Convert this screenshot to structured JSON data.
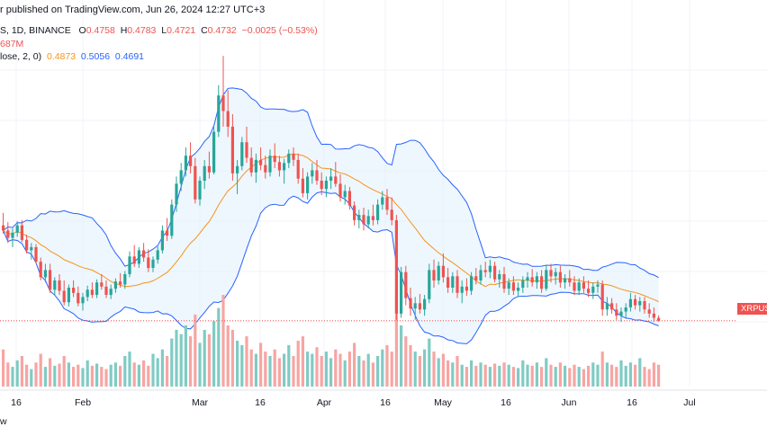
{
  "header": {
    "publish_text": "r published on TradingView.com, Jun 26, 2024 12:27 UTC+3",
    "symbol_text": "S, 1D, BINANCE",
    "ohlc": {
      "o_label": "O",
      "o_value": "0.4758",
      "h_label": "H",
      "h_value": "0.4783",
      "l_label": "L",
      "l_value": "0.4721",
      "c_label": "C",
      "c_value": "0.4732",
      "change": "−0.0025 (−0.53%)"
    },
    "volume_text": "687M",
    "bb_label": "lose, 2, 0)",
    "bb_basis": "0.4873",
    "bb_upper": "0.5056",
    "bb_lower": "0.4691"
  },
  "price_tag": "XRPUSDT",
  "footer_text": "w",
  "colors": {
    "up": "#26a69a",
    "down": "#ef5350",
    "basis": "#f7931a",
    "band": "#2962ff",
    "band_fill": "#e3f2fd",
    "volume_up": "#80cbc4",
    "volume_down": "#f7a5a3"
  },
  "chart_data": {
    "type": "candlestick",
    "x_tick_labels": [
      "16",
      "Feb",
      "Mar",
      "16",
      "Apr",
      "16",
      "May",
      "16",
      "Jun",
      "16",
      "Jul"
    ],
    "candles": [
      [
        0.565,
        0.577,
        0.557,
        0.56
      ],
      [
        0.56,
        0.568,
        0.548,
        0.553
      ],
      [
        0.553,
        0.562,
        0.544,
        0.558
      ],
      [
        0.558,
        0.569,
        0.554,
        0.565
      ],
      [
        0.565,
        0.57,
        0.549,
        0.551
      ],
      [
        0.551,
        0.556,
        0.538,
        0.541
      ],
      [
        0.541,
        0.548,
        0.532,
        0.544
      ],
      [
        0.544,
        0.547,
        0.528,
        0.53
      ],
      [
        0.53,
        0.534,
        0.512,
        0.515
      ],
      [
        0.515,
        0.528,
        0.51,
        0.522
      ],
      [
        0.522,
        0.528,
        0.5,
        0.503
      ],
      [
        0.503,
        0.515,
        0.498,
        0.512
      ],
      [
        0.512,
        0.518,
        0.498,
        0.502
      ],
      [
        0.502,
        0.512,
        0.488,
        0.491
      ],
      [
        0.491,
        0.508,
        0.487,
        0.505
      ],
      [
        0.505,
        0.512,
        0.496,
        0.5
      ],
      [
        0.5,
        0.506,
        0.487,
        0.49
      ],
      [
        0.49,
        0.5,
        0.483,
        0.496
      ],
      [
        0.496,
        0.507,
        0.492,
        0.503
      ],
      [
        0.503,
        0.51,
        0.495,
        0.498
      ],
      [
        0.498,
        0.513,
        0.495,
        0.51
      ],
      [
        0.51,
        0.518,
        0.503,
        0.506
      ],
      [
        0.506,
        0.512,
        0.495,
        0.498
      ],
      [
        0.498,
        0.508,
        0.494,
        0.504
      ],
      [
        0.504,
        0.514,
        0.5,
        0.511
      ],
      [
        0.511,
        0.519,
        0.505,
        0.508
      ],
      [
        0.508,
        0.521,
        0.504,
        0.518
      ],
      [
        0.518,
        0.54,
        0.515,
        0.535
      ],
      [
        0.535,
        0.546,
        0.525,
        0.528
      ],
      [
        0.528,
        0.544,
        0.524,
        0.541
      ],
      [
        0.541,
        0.548,
        0.53,
        0.534
      ],
      [
        0.534,
        0.542,
        0.52,
        0.524
      ],
      [
        0.524,
        0.535,
        0.52,
        0.532
      ],
      [
        0.532,
        0.545,
        0.528,
        0.541
      ],
      [
        0.541,
        0.565,
        0.538,
        0.56
      ],
      [
        0.56,
        0.572,
        0.55,
        0.555
      ],
      [
        0.555,
        0.59,
        0.552,
        0.585
      ],
      [
        0.585,
        0.612,
        0.578,
        0.605
      ],
      [
        0.605,
        0.625,
        0.598,
        0.618
      ],
      [
        0.618,
        0.64,
        0.612,
        0.632
      ],
      [
        0.632,
        0.645,
        0.615,
        0.622
      ],
      [
        0.622,
        0.63,
        0.586,
        0.59
      ],
      [
        0.59,
        0.612,
        0.584,
        0.608
      ],
      [
        0.608,
        0.628,
        0.6,
        0.622
      ],
      [
        0.622,
        0.636,
        0.61,
        0.616
      ],
      [
        0.616,
        0.66,
        0.614,
        0.655
      ],
      [
        0.655,
        0.7,
        0.65,
        0.69
      ],
      [
        0.69,
        0.728,
        0.66,
        0.675
      ],
      [
        0.675,
        0.695,
        0.65,
        0.66
      ],
      [
        0.66,
        0.672,
        0.608,
        0.615
      ],
      [
        0.615,
        0.628,
        0.595,
        0.622
      ],
      [
        0.622,
        0.65,
        0.618,
        0.645
      ],
      [
        0.645,
        0.66,
        0.625,
        0.63
      ],
      [
        0.63,
        0.64,
        0.612,
        0.616
      ],
      [
        0.616,
        0.634,
        0.606,
        0.628
      ],
      [
        0.628,
        0.64,
        0.618,
        0.623
      ],
      [
        0.623,
        0.632,
        0.61,
        0.616
      ],
      [
        0.616,
        0.638,
        0.612,
        0.632
      ],
      [
        0.632,
        0.644,
        0.62,
        0.626
      ],
      [
        0.626,
        0.632,
        0.612,
        0.618
      ],
      [
        0.618,
        0.629,
        0.605,
        0.625
      ],
      [
        0.625,
        0.638,
        0.62,
        0.634
      ],
      [
        0.634,
        0.64,
        0.622,
        0.628
      ],
      [
        0.628,
        0.634,
        0.605,
        0.61
      ],
      [
        0.61,
        0.62,
        0.592,
        0.596
      ],
      [
        0.596,
        0.616,
        0.59,
        0.612
      ],
      [
        0.612,
        0.625,
        0.605,
        0.618
      ],
      [
        0.618,
        0.628,
        0.604,
        0.608
      ],
      [
        0.608,
        0.616,
        0.594,
        0.6
      ],
      [
        0.6,
        0.612,
        0.592,
        0.608
      ],
      [
        0.608,
        0.62,
        0.6,
        0.612
      ],
      [
        0.612,
        0.626,
        0.602,
        0.605
      ],
      [
        0.605,
        0.614,
        0.588,
        0.592
      ],
      [
        0.592,
        0.604,
        0.585,
        0.598
      ],
      [
        0.598,
        0.602,
        0.58,
        0.584
      ],
      [
        0.584,
        0.588,
        0.565,
        0.57
      ],
      [
        0.57,
        0.58,
        0.562,
        0.575
      ],
      [
        0.575,
        0.582,
        0.56,
        0.566
      ],
      [
        0.566,
        0.58,
        0.562,
        0.574
      ],
      [
        0.574,
        0.585,
        0.565,
        0.57
      ],
      [
        0.57,
        0.59,
        0.566,
        0.585
      ],
      [
        0.585,
        0.598,
        0.58,
        0.592
      ],
      [
        0.592,
        0.6,
        0.575,
        0.58
      ],
      [
        0.58,
        0.592,
        0.565,
        0.57
      ],
      [
        0.57,
        0.575,
        0.474,
        0.48
      ],
      [
        0.48,
        0.525,
        0.476,
        0.52
      ],
      [
        0.52,
        0.526,
        0.488,
        0.495
      ],
      [
        0.495,
        0.505,
        0.478,
        0.485
      ],
      [
        0.485,
        0.496,
        0.474,
        0.49
      ],
      [
        0.49,
        0.499,
        0.48,
        0.484
      ],
      [
        0.484,
        0.498,
        0.478,
        0.494
      ],
      [
        0.494,
        0.528,
        0.49,
        0.522
      ],
      [
        0.522,
        0.532,
        0.505,
        0.512
      ],
      [
        0.512,
        0.53,
        0.508,
        0.526
      ],
      [
        0.526,
        0.538,
        0.51,
        0.515
      ],
      [
        0.515,
        0.524,
        0.5,
        0.505
      ],
      [
        0.505,
        0.52,
        0.5,
        0.516
      ],
      [
        0.516,
        0.522,
        0.495,
        0.5
      ],
      [
        0.5,
        0.512,
        0.49,
        0.506
      ],
      [
        0.506,
        0.514,
        0.497,
        0.502
      ],
      [
        0.502,
        0.52,
        0.498,
        0.516
      ],
      [
        0.516,
        0.524,
        0.508,
        0.512
      ],
      [
        0.512,
        0.527,
        0.508,
        0.522
      ],
      [
        0.522,
        0.53,
        0.515,
        0.52
      ],
      [
        0.52,
        0.532,
        0.514,
        0.526
      ],
      [
        0.526,
        0.53,
        0.51,
        0.513
      ],
      [
        0.513,
        0.522,
        0.505,
        0.518
      ],
      [
        0.518,
        0.525,
        0.5,
        0.504
      ],
      [
        0.504,
        0.514,
        0.498,
        0.51
      ],
      [
        0.51,
        0.516,
        0.498,
        0.502
      ],
      [
        0.502,
        0.51,
        0.496,
        0.505
      ],
      [
        0.505,
        0.516,
        0.5,
        0.512
      ],
      [
        0.512,
        0.52,
        0.505,
        0.515
      ],
      [
        0.515,
        0.523,
        0.506,
        0.51
      ],
      [
        0.51,
        0.52,
        0.504,
        0.516
      ],
      [
        0.516,
        0.522,
        0.5,
        0.504
      ],
      [
        0.504,
        0.526,
        0.502,
        0.522
      ],
      [
        0.522,
        0.528,
        0.51,
        0.516
      ],
      [
        0.516,
        0.524,
        0.508,
        0.52
      ],
      [
        0.52,
        0.526,
        0.505,
        0.51
      ],
      [
        0.51,
        0.518,
        0.504,
        0.514
      ],
      [
        0.514,
        0.522,
        0.506,
        0.51
      ],
      [
        0.51,
        0.516,
        0.498,
        0.502
      ],
      [
        0.502,
        0.514,
        0.498,
        0.51
      ],
      [
        0.51,
        0.516,
        0.5,
        0.504
      ],
      [
        0.504,
        0.512,
        0.496,
        0.5
      ],
      [
        0.5,
        0.51,
        0.494,
        0.506
      ],
      [
        0.506,
        0.512,
        0.5,
        0.508
      ],
      [
        0.508,
        0.512,
        0.478,
        0.484
      ],
      [
        0.484,
        0.496,
        0.478,
        0.49
      ],
      [
        0.49,
        0.495,
        0.48,
        0.484
      ],
      [
        0.484,
        0.49,
        0.474,
        0.478
      ],
      [
        0.478,
        0.486,
        0.472,
        0.482
      ],
      [
        0.482,
        0.49,
        0.476,
        0.486
      ],
      [
        0.486,
        0.5,
        0.482,
        0.494
      ],
      [
        0.494,
        0.498,
        0.484,
        0.488
      ],
      [
        0.488,
        0.496,
        0.482,
        0.492
      ],
      [
        0.492,
        0.496,
        0.48,
        0.484
      ],
      [
        0.484,
        0.49,
        0.476,
        0.48
      ],
      [
        0.48,
        0.486,
        0.472,
        0.476
      ],
      [
        0.4758,
        0.4783,
        0.4721,
        0.4732
      ]
    ],
    "volumes": [
      170,
      110,
      90,
      120,
      140,
      100,
      80,
      110,
      150,
      90,
      130,
      95,
      105,
      140,
      110,
      90,
      100,
      85,
      120,
      95,
      105,
      90,
      80,
      100,
      110,
      95,
      140,
      160,
      110,
      100,
      120,
      95,
      150,
      130,
      170,
      140,
      220,
      260,
      240,
      280,
      230,
      330,
      200,
      260,
      240,
      300,
      360,
      420,
      280,
      260,
      210,
      190,
      230,
      170,
      150,
      200,
      160,
      140,
      170,
      130,
      150,
      190,
      140,
      210,
      230,
      160,
      150,
      180,
      140,
      160,
      130,
      170,
      150,
      120,
      160,
      200,
      140,
      120,
      150,
      110,
      140,
      170,
      190,
      160,
      420,
      280,
      230,
      190,
      160,
      140,
      170,
      220,
      160,
      130,
      150,
      120,
      110,
      140,
      100,
      90,
      120,
      95,
      110,
      100,
      90,
      105,
      95,
      110,
      100,
      90,
      85,
      120,
      100,
      95,
      110,
      90,
      130,
      100,
      90,
      110,
      95,
      85,
      100,
      90,
      80,
      95,
      110,
      100,
      160,
      110,
      100,
      90,
      120,
      95,
      110,
      100,
      130,
      90,
      80,
      110,
      100
    ],
    "price_range": [
      0.46,
      0.73
    ],
    "bollinger": {
      "length": 20,
      "mult": 2
    },
    "last_price_label": "XRPUSDT",
    "grid": true
  }
}
